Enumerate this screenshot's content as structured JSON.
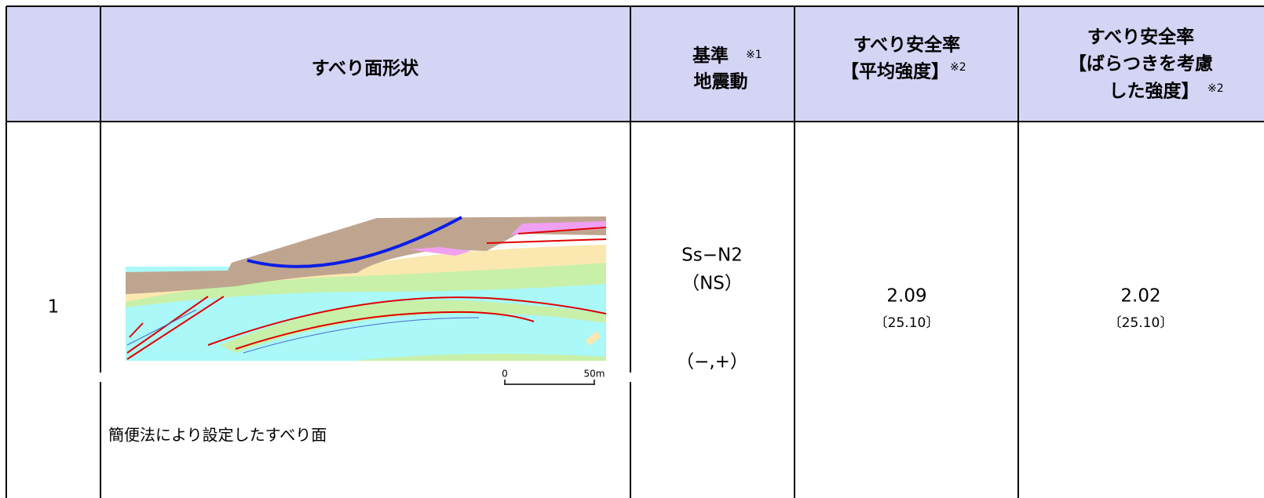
{
  "table": {
    "header": {
      "shape": "すべり面形状",
      "motion": [
        "基準",
        "地震動"
      ],
      "motion_note": "※1",
      "fs_mean": [
        "すべり安全率",
        "【平均強度】"
      ],
      "fs_mean_note": "※2",
      "fs_var": [
        "すべり安全率",
        "【ばらつきを考慮",
        "した強度】"
      ],
      "fs_var_note": "※2"
    },
    "rows": [
      {
        "no": "1",
        "figure": {
          "scale": [
            "0",
            "50m"
          ],
          "caption": "簡便法により設定したすべり面"
        },
        "motion": [
          "Ss−N2",
          "（NS）",
          "（−,+）"
        ],
        "fs_mean": {
          "value": "2.09",
          "time": "〔25.10〕"
        },
        "fs_var": {
          "value": "2.02",
          "time": "〔25.10〕"
        }
      }
    ]
  }
}
